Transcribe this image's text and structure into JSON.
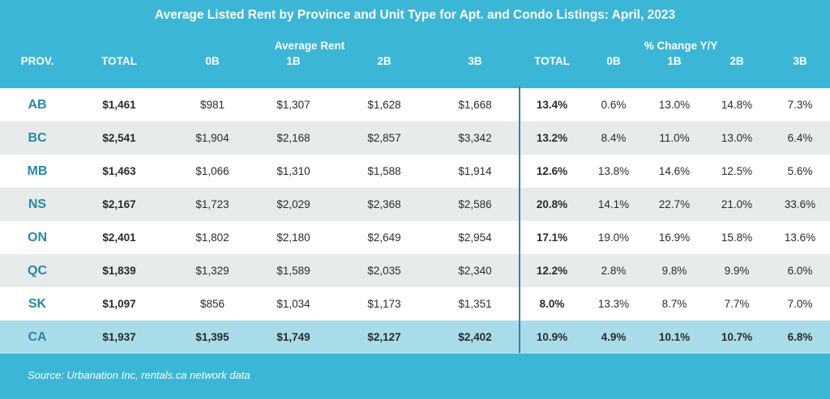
{
  "chart_data": {
    "type": "table",
    "title": "Average Listed Rent by Province and Unit Type for Apt. and Condo Listings: April, 2023",
    "group_headers": {
      "rent": "Average Rent",
      "change": "% Change Y/Y"
    },
    "columns": [
      "PROV.",
      "TOTAL",
      "0B",
      "1B",
      "2B",
      "3B",
      "TOTAL",
      "0B",
      "1B",
      "2B",
      "3B"
    ],
    "rows": [
      [
        "AB",
        "$1,461",
        "$981",
        "$1,307",
        "$1,628",
        "$1,668",
        "13.4%",
        "0.6%",
        "13.0%",
        "14.8%",
        "7.3%"
      ],
      [
        "BC",
        "$2,541",
        "$1,904",
        "$2,168",
        "$2,857",
        "$3,342",
        "13.2%",
        "8.4%",
        "11.0%",
        "13.0%",
        "6.4%"
      ],
      [
        "MB",
        "$1,463",
        "$1,066",
        "$1,310",
        "$1,588",
        "$1,914",
        "12.6%",
        "13.8%",
        "14.6%",
        "12.5%",
        "5.6%"
      ],
      [
        "NS",
        "$2,167",
        "$1,723",
        "$2,029",
        "$2,368",
        "$2,586",
        "20.8%",
        "14.1%",
        "22.7%",
        "21.0%",
        "33.6%"
      ],
      [
        "ON",
        "$2,401",
        "$1,802",
        "$2,180",
        "$2,649",
        "$2,954",
        "17.1%",
        "19.0%",
        "16.9%",
        "15.8%",
        "13.6%"
      ],
      [
        "QC",
        "$1,839",
        "$1,329",
        "$1,589",
        "$2,035",
        "$2,340",
        "12.2%",
        "2.8%",
        "9.8%",
        "9.9%",
        "6.0%"
      ],
      [
        "SK",
        "$1,097",
        "$856",
        "$1,034",
        "$1,173",
        "$1,351",
        "8.0%",
        "13.3%",
        "8.7%",
        "7.7%",
        "7.0%"
      ],
      [
        "CA",
        "$1,937",
        "$1,395",
        "$1,749",
        "$2,127",
        "$2,402",
        "10.9%",
        "4.9%",
        "10.1%",
        "10.7%",
        "6.8%"
      ]
    ],
    "source": "Source: Urbanation Inc, rentals.ca network data"
  },
  "colors": {
    "header_bg": "#3bb6d6",
    "row_white": "#ffffff",
    "row_gray": "#e8ebec",
    "total_row": "#a9dce9",
    "province_text": "#2789a8",
    "divider": "#3a7fa6"
  }
}
